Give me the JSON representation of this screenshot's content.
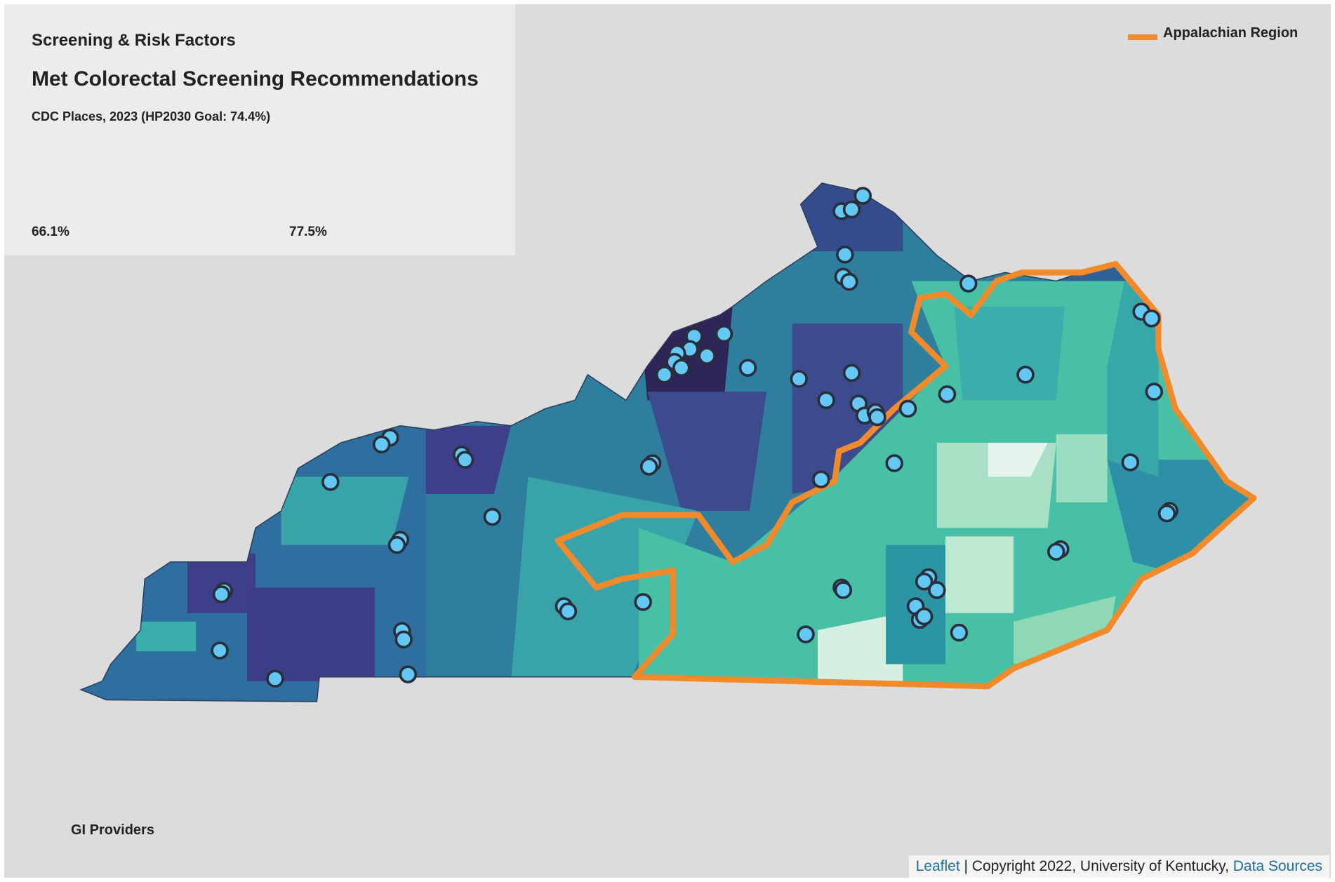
{
  "panel": {
    "category": "Screening & Risk Factors",
    "title": "Met Colorectal Screening Recommendations",
    "subtitle": "CDC Places, 2023 (HP2030 Goal: 74.4%)",
    "legend_min": "66.1%",
    "legend_max": "77.5%"
  },
  "legend": {
    "appalachian": "Appalachian Region",
    "providers": "GI Providers"
  },
  "attribution": {
    "leaflet": "Leaflet",
    "copyright": "| Copyright 2022, University of Kentucky,",
    "sources": "Data Sources"
  }
}
